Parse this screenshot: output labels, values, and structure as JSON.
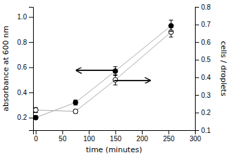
{
  "chart_data": {
    "type": "scatter",
    "xlabel": "time (minutes)",
    "ylabel": "absorbance at 600 nm",
    "y2label": "cells / droplets",
    "xlim": [
      -5,
      300
    ],
    "xticks": [
      0,
      50,
      100,
      150,
      200,
      250,
      300
    ],
    "ylim": [
      0.1,
      1.08
    ],
    "yticks": [
      0.2,
      0.4,
      0.6,
      0.8,
      {
        "value": 1.0,
        "label": "1.0"
      }
    ],
    "y2lim": [
      0.1,
      0.8
    ],
    "y2ticks": [
      0.1,
      0.2,
      0.3,
      0.4,
      0.5,
      0.6,
      0.7,
      0.8
    ],
    "grid": false,
    "series": [
      {
        "x": [
          0,
          75,
          150,
          255
        ],
        "values": [
          0.2,
          0.32,
          0.57,
          0.93
        ],
        "errors": [
          0.015,
          0.02,
          0.035,
          0.045
        ],
        "color": "#000000",
        "marker": "filled-circle"
      },
      {
        "x": [
          0,
          75,
          150,
          255
        ],
        "values": [
          0.26,
          0.25,
          0.5,
          0.88
        ],
        "errors": [
          0.02,
          0.015,
          0.04,
          0.04
        ],
        "color": "#000000",
        "marker": "open-circle"
      }
    ]
  }
}
